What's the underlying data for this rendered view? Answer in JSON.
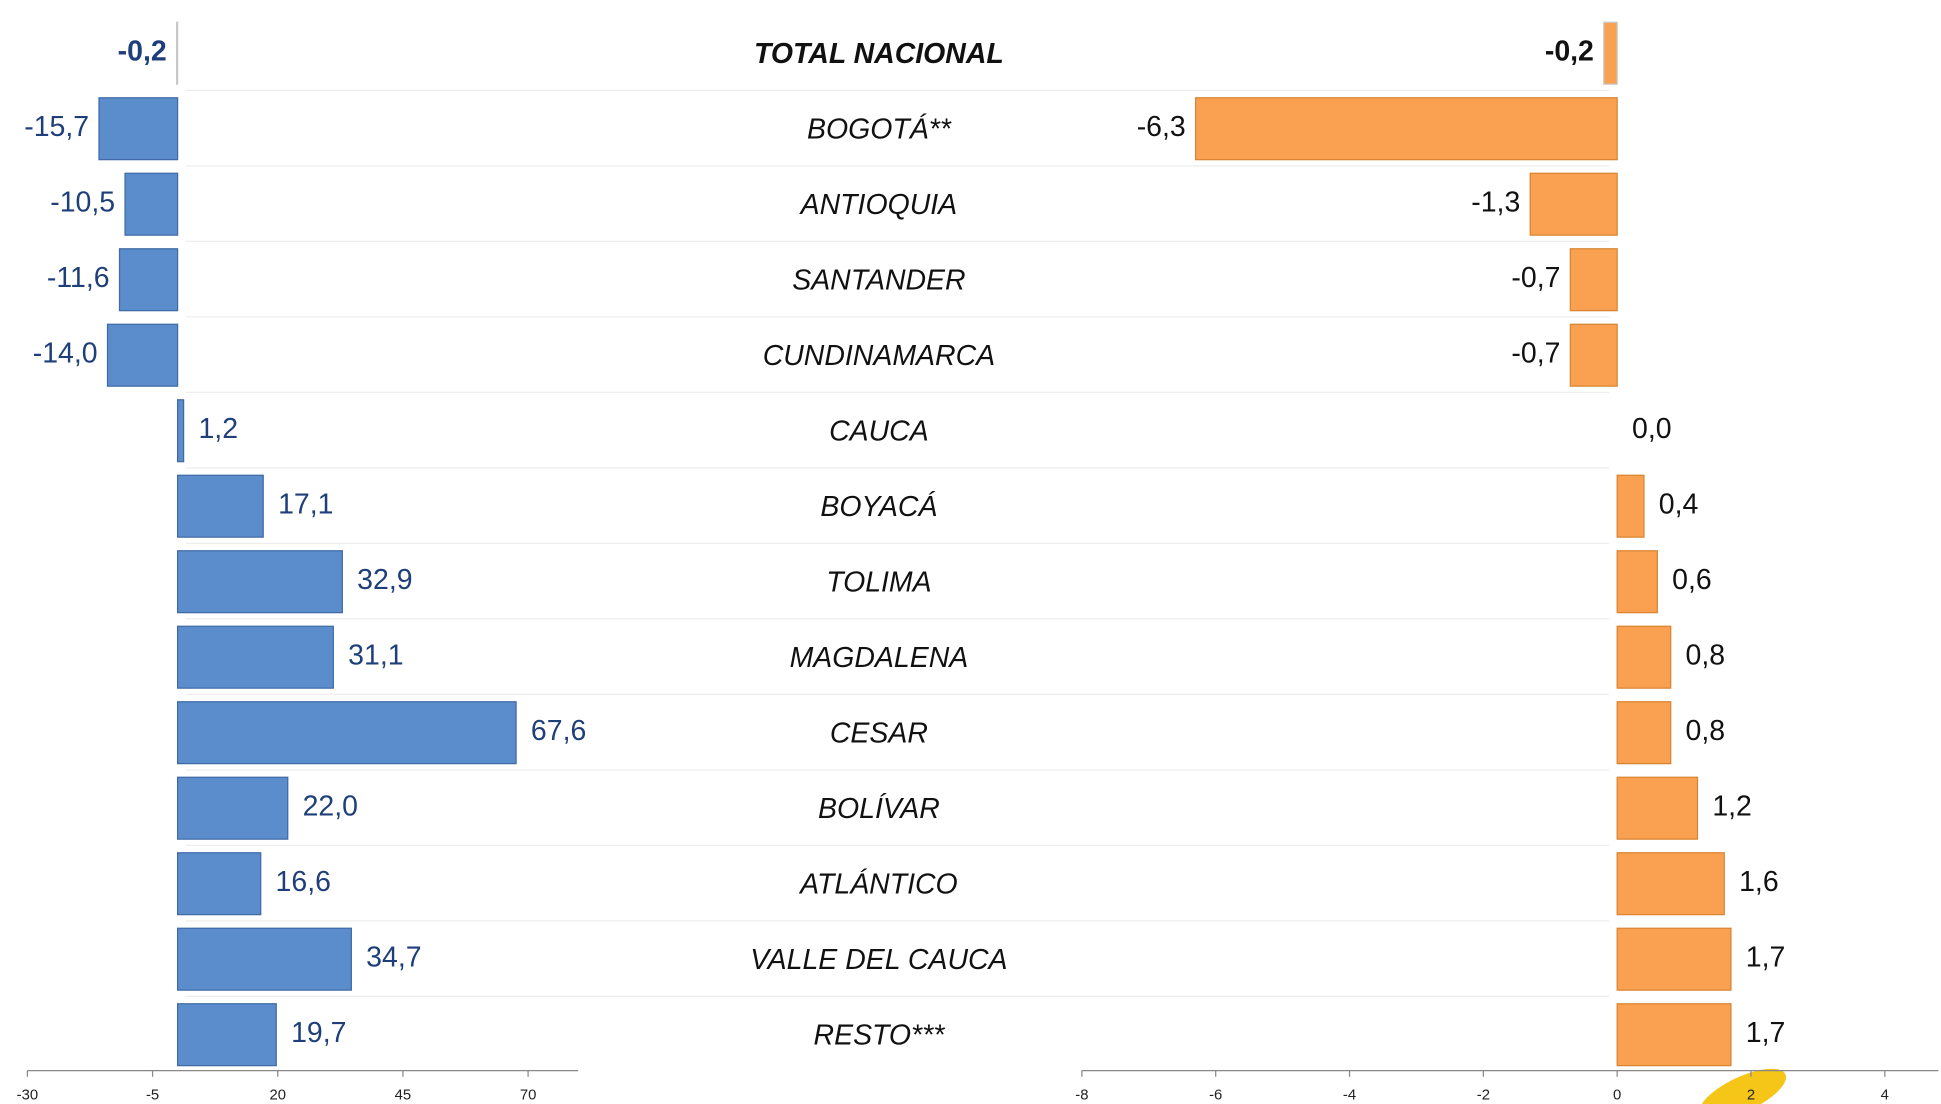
{
  "chart_data": [
    {
      "type": "bar",
      "orientation": "horizontal",
      "color": "#5b8ccc",
      "categories": [
        "TOTAL NACIONAL",
        "BOGOTÁ**",
        "ANTIOQUIA",
        "SANTANDER",
        "CUNDINAMARCA",
        "CAUCA",
        "BOYACÁ",
        "TOLIMA",
        "MAGDALENA",
        "CESAR",
        "BOLÍVAR",
        "ATLÁNTICO",
        "VALLE DEL CAUCA",
        "RESTO***"
      ],
      "values": [
        -0.2,
        -15.7,
        -10.5,
        -11.6,
        -14.0,
        1.2,
        17.1,
        32.9,
        31.1,
        67.6,
        22.0,
        16.6,
        34.7,
        19.7
      ],
      "value_labels": [
        "-0,2",
        "-15,7",
        "-10,5",
        "-11,6",
        "-14,0",
        "1,2",
        "17,1",
        "32,9",
        "31,1",
        "67,6",
        "22,0",
        "16,6",
        "34,7",
        "19,7"
      ],
      "xlim": [
        -30,
        80
      ],
      "xticks": [
        -30,
        -5,
        20,
        45,
        70
      ]
    },
    {
      "type": "bar",
      "orientation": "horizontal",
      "color": "#f9a150",
      "values": [
        -0.2,
        -6.3,
        -1.3,
        -0.7,
        -0.7,
        0.0,
        0.4,
        0.6,
        0.8,
        0.8,
        1.2,
        1.6,
        1.7,
        1.7
      ],
      "value_labels": [
        "-0,2",
        "-6,3",
        "-1,3",
        "-0,7",
        "-0,7",
        "0,0",
        "0,4",
        "0,6",
        "0,8",
        "0,8",
        "1,2",
        "1,6",
        "1,7",
        "1,7"
      ],
      "xlim": [
        -8,
        4.8
      ],
      "xticks": [
        -8,
        -6,
        -4,
        -2,
        0,
        2,
        4
      ]
    }
  ]
}
